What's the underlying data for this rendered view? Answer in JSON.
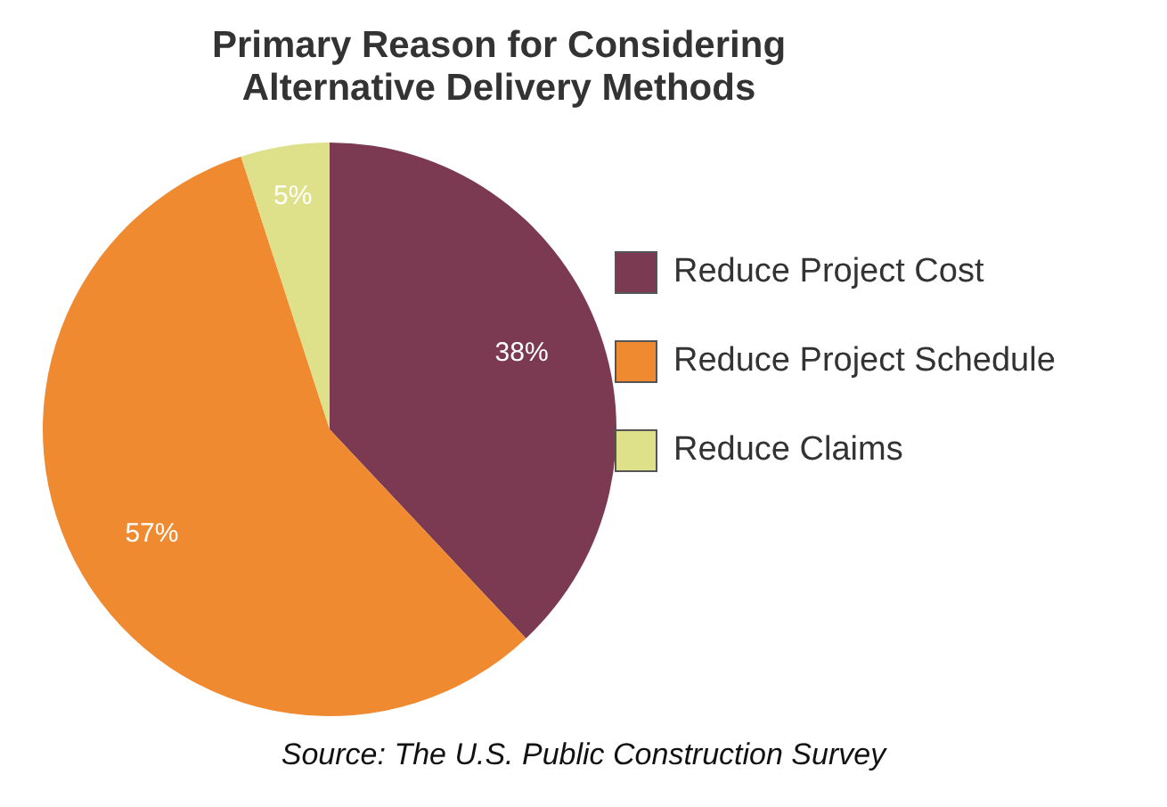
{
  "chart_data": {
    "type": "pie",
    "title": "Primary Reason for Considering\nAlternative Delivery Methods",
    "categories": [
      "Reduce Project Cost",
      "Reduce Project Schedule",
      "Reduce Claims"
    ],
    "values": [
      38,
      57,
      5
    ],
    "colors": [
      "#7b3a52",
      "#f08a30",
      "#dfe08a"
    ],
    "value_labels": [
      "38%",
      "57%",
      "5%"
    ],
    "legend": "right",
    "annotations": [
      "Source: The U.S. Public Construction Survey"
    ]
  }
}
